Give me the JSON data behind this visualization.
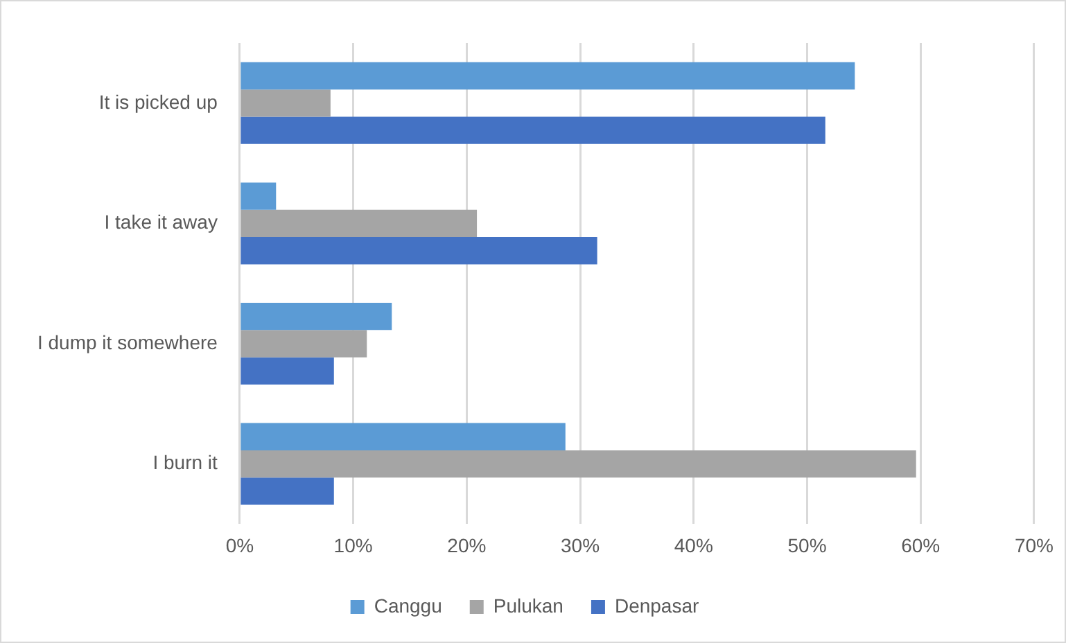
{
  "chart_data": {
    "type": "bar",
    "orientation": "horizontal",
    "categories": [
      "It is picked up",
      "I take it away",
      "I dump it somewhere",
      "I burn it"
    ],
    "series": [
      {
        "name": "Canggu",
        "color": "#5b9bd5",
        "values": [
          54.2,
          3.2,
          13.4,
          28.7
        ]
      },
      {
        "name": "Pulukan",
        "color": "#a5a5a5",
        "values": [
          8.0,
          20.9,
          11.2,
          59.6
        ]
      },
      {
        "name": "Denpasar",
        "color": "#4472c4",
        "values": [
          51.6,
          31.5,
          8.3,
          8.3
        ]
      }
    ],
    "xlim": [
      0,
      70
    ],
    "xticks": [
      {
        "value": 0,
        "label": "0%"
      },
      {
        "value": 10,
        "label": "10%"
      },
      {
        "value": 20,
        "label": "20%"
      },
      {
        "value": 30,
        "label": "30%"
      },
      {
        "value": 40,
        "label": "40%"
      },
      {
        "value": 50,
        "label": "50%"
      },
      {
        "value": 60,
        "label": "60%"
      },
      {
        "value": 70,
        "label": "70%"
      }
    ],
    "grid": "x",
    "legend": "bottom"
  }
}
